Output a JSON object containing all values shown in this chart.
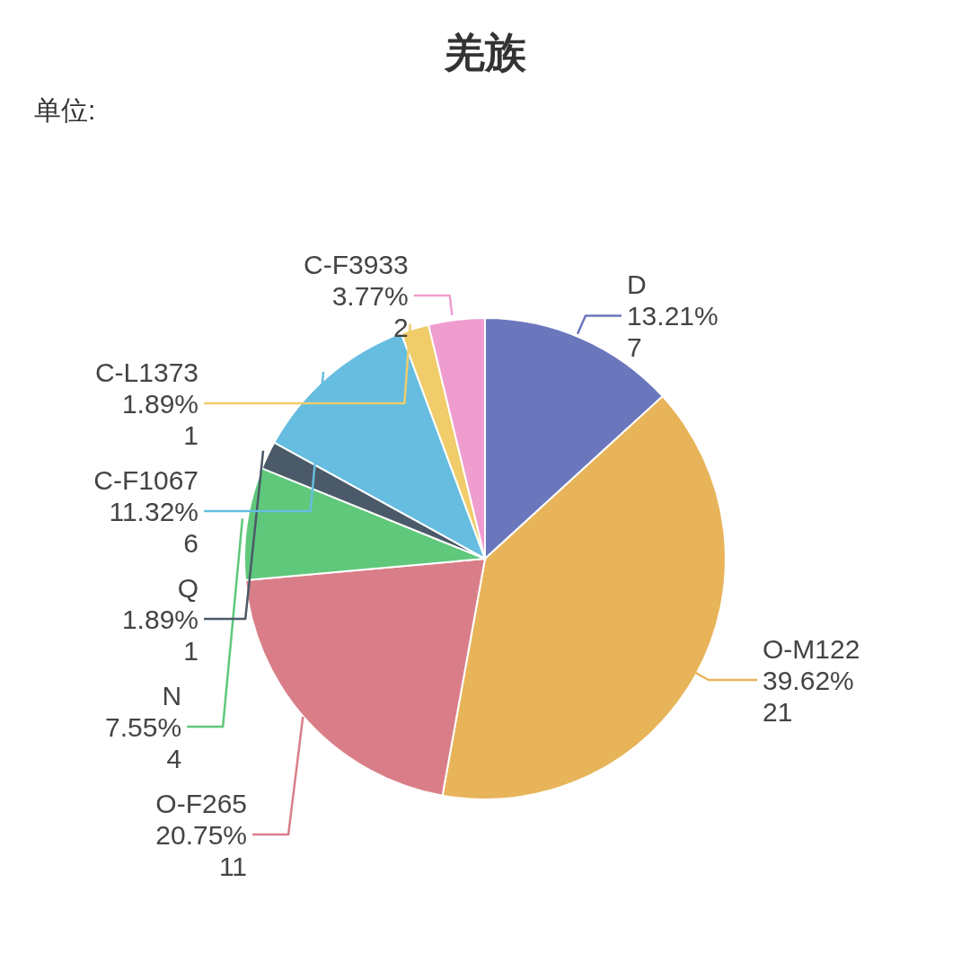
{
  "chart_data": {
    "type": "pie",
    "title": "羌族",
    "annotations": [
      "单位:"
    ],
    "categories": [
      "D",
      "O-M122",
      "O-F265",
      "N",
      "Q",
      "C-F1067",
      "C-L1373",
      "C-F3933"
    ],
    "values": [
      13.21,
      39.62,
      20.75,
      7.55,
      1.89,
      11.32,
      1.89,
      3.77
    ],
    "colors": [
      "#6a77bd",
      "#e8b45a",
      "#d97e88",
      "#5fc87a",
      "#4a5a68",
      "#66bde0",
      "#f0cd6a",
      "#ef9dcf"
    ],
    "value_labels": [
      "13.21%\n7",
      "39.62%\n21",
      "20.75%\n11",
      "7.55%\n4",
      "1.89%\n1",
      "11.32%\n6",
      "1.89%\n1",
      "3.77%\n2"
    ]
  }
}
